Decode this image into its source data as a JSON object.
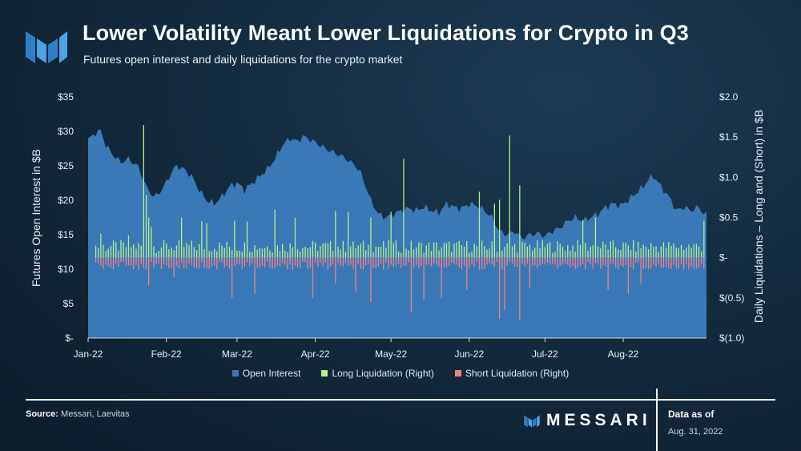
{
  "header": {
    "title": "Lower Volatility Meant Lower Liquidations for Crypto in Q3",
    "subtitle": "Futures open interest and daily liquidations for the crypto market"
  },
  "footer": {
    "source_label": "Source:",
    "source_text": "Messari, Laevitas",
    "brand": "MESSARI",
    "asof_label": "Data as of",
    "asof_date": "Aug. 31, 2022"
  },
  "colors": {
    "open_interest": "#3a79b7",
    "long": "#b4f08a",
    "short": "#f07f84"
  },
  "chart_data": {
    "type": "area",
    "title": "Lower Volatility Meant Lower Liquidations for Crypto in Q3",
    "subtitle": "Futures open interest and daily liquidations for the crypto market",
    "ylabel_left": "Futures Open Interest in $B",
    "ylabel_right": "Daily Liquidations – Long and (Short) in $B",
    "ylim_left": [
      0,
      35
    ],
    "ylim_right": [
      -1.0,
      2.0
    ],
    "yticks_left": [
      "$-",
      "$5",
      "$10",
      "$15",
      "$20",
      "$25",
      "$30",
      "$35"
    ],
    "yticks_right": [
      "$(1.0)",
      "$(0.5)",
      "$-",
      "$0.5",
      "$1.0",
      "$1.5",
      "$2.0"
    ],
    "xticks": [
      "Jan-22",
      "Feb-22",
      "Mar-22",
      "Apr-22",
      "May-22",
      "Jun-22",
      "Jul-22",
      "Aug-22"
    ],
    "legend": [
      "Open Interest",
      "Long Liquidation (Right)",
      "Short Liquidation (Right)"
    ],
    "legend_position": "bottom",
    "open_interest_anchors": [
      [
        0,
        28.8
      ],
      [
        3,
        29.8
      ],
      [
        5,
        30.1
      ],
      [
        7,
        28
      ],
      [
        10,
        26.5
      ],
      [
        13,
        25.5
      ],
      [
        16,
        26
      ],
      [
        20,
        24.8
      ],
      [
        23,
        22
      ],
      [
        26,
        20.5
      ],
      [
        28,
        21
      ],
      [
        30,
        22
      ],
      [
        33,
        24
      ],
      [
        35,
        25
      ],
      [
        38,
        24.5
      ],
      [
        41,
        23.5
      ],
      [
        44,
        21.5
      ],
      [
        47,
        20
      ],
      [
        50,
        19.5
      ],
      [
        53,
        20.5
      ],
      [
        56,
        22
      ],
      [
        59,
        22.5
      ],
      [
        62,
        21.5
      ],
      [
        65,
        22.5
      ],
      [
        68,
        23.5
      ],
      [
        71,
        24.5
      ],
      [
        74,
        26
      ],
      [
        77,
        28
      ],
      [
        80,
        29
      ],
      [
        83,
        28.5
      ],
      [
        85,
        29.3
      ],
      [
        88,
        28.8
      ],
      [
        91,
        28.2
      ],
      [
        94,
        27.5
      ],
      [
        97,
        27
      ],
      [
        100,
        26.5
      ],
      [
        103,
        25.8
      ],
      [
        106,
        25
      ],
      [
        108,
        24
      ],
      [
        110,
        22
      ],
      [
        112,
        20
      ],
      [
        115,
        18
      ],
      [
        118,
        17.5
      ],
      [
        121,
        18
      ],
      [
        124,
        18.5
      ],
      [
        127,
        18.8
      ],
      [
        130,
        18.5
      ],
      [
        133,
        19
      ],
      [
        136,
        18.5
      ],
      [
        139,
        18.2
      ],
      [
        142,
        19.5
      ],
      [
        145,
        19
      ],
      [
        148,
        18.8
      ],
      [
        151,
        19.5
      ],
      [
        154,
        19.2
      ],
      [
        157,
        18.5
      ],
      [
        160,
        17.5
      ],
      [
        163,
        15.5
      ],
      [
        166,
        15
      ],
      [
        169,
        15.5
      ],
      [
        172,
        14.5
      ],
      [
        175,
        15
      ],
      [
        178,
        15.2
      ],
      [
        181,
        14.8
      ],
      [
        184,
        15.5
      ],
      [
        187,
        16
      ],
      [
        190,
        17
      ],
      [
        193,
        17.5
      ],
      [
        196,
        17
      ],
      [
        199,
        17.5
      ],
      [
        202,
        18
      ],
      [
        205,
        19
      ],
      [
        208,
        19.5
      ],
      [
        211,
        19.2
      ],
      [
        214,
        20
      ],
      [
        217,
        21
      ],
      [
        220,
        22
      ],
      [
        222,
        23
      ],
      [
        224,
        23.5
      ],
      [
        227,
        22
      ],
      [
        229,
        21
      ],
      [
        231,
        20
      ],
      [
        233,
        18.5
      ],
      [
        236,
        19
      ],
      [
        239,
        18.5
      ],
      [
        242,
        19
      ],
      [
        244,
        18
      ]
    ],
    "long_liquidation_spikes": [
      [
        22,
        1.65
      ],
      [
        23,
        0.78
      ],
      [
        24,
        0.5
      ],
      [
        25,
        0.38
      ],
      [
        125,
        1.23
      ],
      [
        155,
        0.82
      ],
      [
        161,
        0.67
      ],
      [
        163,
        0.72
      ],
      [
        167,
        1.52
      ],
      [
        171,
        0.9
      ],
      [
        74,
        0.6
      ],
      [
        98,
        0.58
      ],
      [
        103,
        0.57
      ],
      [
        82,
        0.5
      ],
      [
        37,
        0.5
      ],
      [
        45,
        0.45
      ],
      [
        58,
        0.46
      ],
      [
        63,
        0.45
      ],
      [
        112,
        0.5
      ],
      [
        120,
        0.57
      ],
      [
        196,
        0.47
      ],
      [
        201,
        0.5
      ],
      [
        244,
        0.46
      ],
      [
        47,
        0.43
      ],
      [
        5,
        0.3
      ],
      [
        16,
        0.28
      ]
    ],
    "short_liquidation_spikes": [
      [
        112,
        -0.55
      ],
      [
        128,
        -0.68
      ],
      [
        163,
        -0.76
      ],
      [
        165,
        -0.65
      ],
      [
        171,
        -0.78
      ],
      [
        175,
        -0.38
      ],
      [
        106,
        -0.42
      ],
      [
        89,
        -0.5
      ],
      [
        98,
        -0.32
      ],
      [
        57,
        -0.5
      ],
      [
        66,
        -0.45
      ],
      [
        133,
        -0.52
      ],
      [
        140,
        -0.5
      ],
      [
        150,
        -0.4
      ],
      [
        206,
        -0.4
      ],
      [
        214,
        -0.45
      ],
      [
        219,
        -0.32
      ],
      [
        24,
        -0.34
      ],
      [
        34,
        -0.24
      ],
      [
        245,
        -0.2
      ]
    ],
    "days": 245
  }
}
